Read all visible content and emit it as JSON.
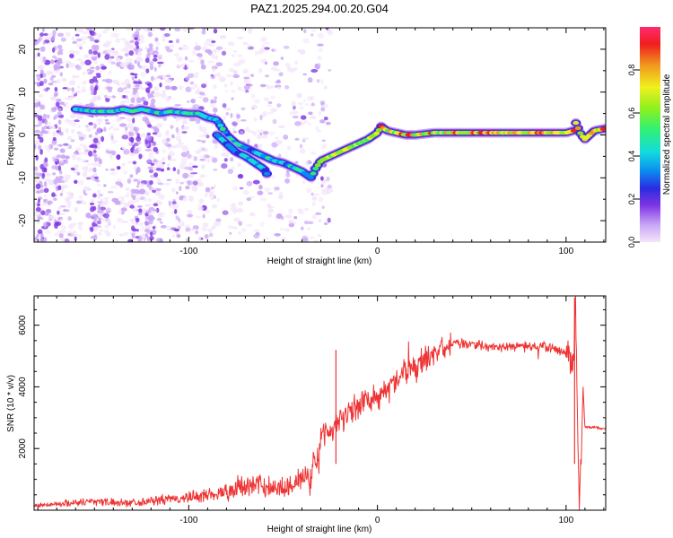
{
  "figure": {
    "title": "PAZ1.2025.294.00.20.G04"
  },
  "chart_data": [
    {
      "type": "heatmap",
      "title": "PAZ1.2025.294.00.20.G04",
      "xlabel": "Height of straight line (km)",
      "ylabel": "Frequency (Hz)",
      "xlim": [
        -182,
        121
      ],
      "ylim": [
        -25,
        25
      ],
      "x_ticks": [
        -100,
        0,
        100
      ],
      "x_tick_labels": [
        "-100",
        "0",
        "100"
      ],
      "y_ticks": [
        -20,
        -10,
        0,
        10,
        20
      ],
      "y_tick_labels": [
        "-20",
        "-10",
        "0",
        "10",
        "20"
      ],
      "ridge": {
        "x": [
          -160,
          -150,
          -140,
          -135,
          -130,
          -125,
          -120,
          -115,
          -110,
          -100,
          -95,
          -90,
          -85,
          -80,
          -75,
          -70,
          -65,
          -60,
          -55,
          -50,
          -45,
          -40,
          -35,
          -33,
          -30,
          -25,
          -20,
          -15,
          -10,
          -5,
          0,
          2,
          5,
          10,
          15,
          20,
          30,
          40,
          50,
          60,
          70,
          80,
          90,
          100,
          104,
          105,
          106,
          108,
          110,
          115,
          121
        ],
        "y": [
          6,
          5.5,
          5.5,
          6,
          5.5,
          6,
          5.5,
          5,
          5.5,
          5,
          5,
          4,
          3.5,
          0,
          -2,
          -3,
          -4,
          -5,
          -6,
          -6.5,
          -7.5,
          -8.5,
          -10,
          -8,
          -6,
          -5,
          -4,
          -3,
          -2,
          -1,
          0.5,
          2,
          1,
          0.5,
          0,
          0,
          0.5,
          0.5,
          0.5,
          0.5,
          0.5,
          0.5,
          0.5,
          0.5,
          1,
          3,
          2,
          0,
          -1,
          1,
          1.5
        ]
      },
      "branch": {
        "x": [
          -85,
          -80,
          -75,
          -70,
          -65,
          -60,
          -58
        ],
        "y": [
          0,
          -2,
          -4,
          -5,
          -6.5,
          -8,
          -9.5
        ]
      }
    },
    {
      "type": "line",
      "xlabel": "Height of straight line (km)",
      "ylabel": "SNR (10 * v/v)",
      "xlim": [
        -182,
        121
      ],
      "ylim": [
        0,
        6950
      ],
      "x_ticks": [
        -100,
        0,
        100
      ],
      "x_tick_labels": [
        "-100",
        "0",
        "100"
      ],
      "y_ticks": [
        2000,
        4000,
        6000
      ],
      "y_tick_labels": [
        "2000",
        "4000",
        "6000"
      ],
      "color": "#ee3333",
      "series": [
        {
          "name": "SNR",
          "x": [
            -182,
            -170,
            -160,
            -150,
            -140,
            -130,
            -120,
            -110,
            -100,
            -90,
            -80,
            -70,
            -60,
            -50,
            -45,
            -42,
            -40,
            -38,
            -36,
            -34,
            -32,
            -30,
            -28,
            -26,
            -24,
            -22,
            -20,
            -15,
            -10,
            -5,
            0,
            5,
            10,
            15,
            20,
            25,
            30,
            35,
            40,
            50,
            60,
            70,
            80,
            90,
            95,
            100,
            102,
            104,
            105,
            106,
            107,
            108,
            109,
            110,
            112,
            115,
            118,
            121
          ],
          "values": [
            150,
            200,
            250,
            300,
            250,
            250,
            300,
            350,
            400,
            500,
            600,
            800,
            800,
            700,
            900,
            1000,
            900,
            1200,
            700,
            1600,
            1600,
            2400,
            2600,
            2700,
            2600,
            2800,
            3000,
            3200,
            3400,
            3600,
            3700,
            3900,
            4200,
            4400,
            4600,
            4900,
            5100,
            5200,
            5400,
            5400,
            5300,
            5300,
            5300,
            5300,
            5200,
            5100,
            5000,
            4800,
            6900,
            3000,
            300,
            1500,
            4000,
            2700,
            2700,
            2700,
            2650,
            2650
          ]
        }
      ],
      "annotations": [
        {
          "x": -22,
          "value": 5200
        },
        {
          "x": 104.5,
          "value": 6900
        }
      ]
    }
  ],
  "colorbar": {
    "label": "Normalized spectral amplitude",
    "ticks": [
      "0.0",
      "0.2",
      "0.4",
      "0.6",
      "0.8"
    ],
    "tick_values": [
      0,
      0.2,
      0.4,
      0.6,
      0.8
    ],
    "colors": [
      "#f4e6fb",
      "#c9a6f5",
      "#7f35e3",
      "#2b2be0",
      "#0b8cf0",
      "#14dcdc",
      "#2ef078",
      "#8cf01e",
      "#f0f01e",
      "#f09a1e",
      "#f01e1e",
      "#ff2a70"
    ]
  }
}
